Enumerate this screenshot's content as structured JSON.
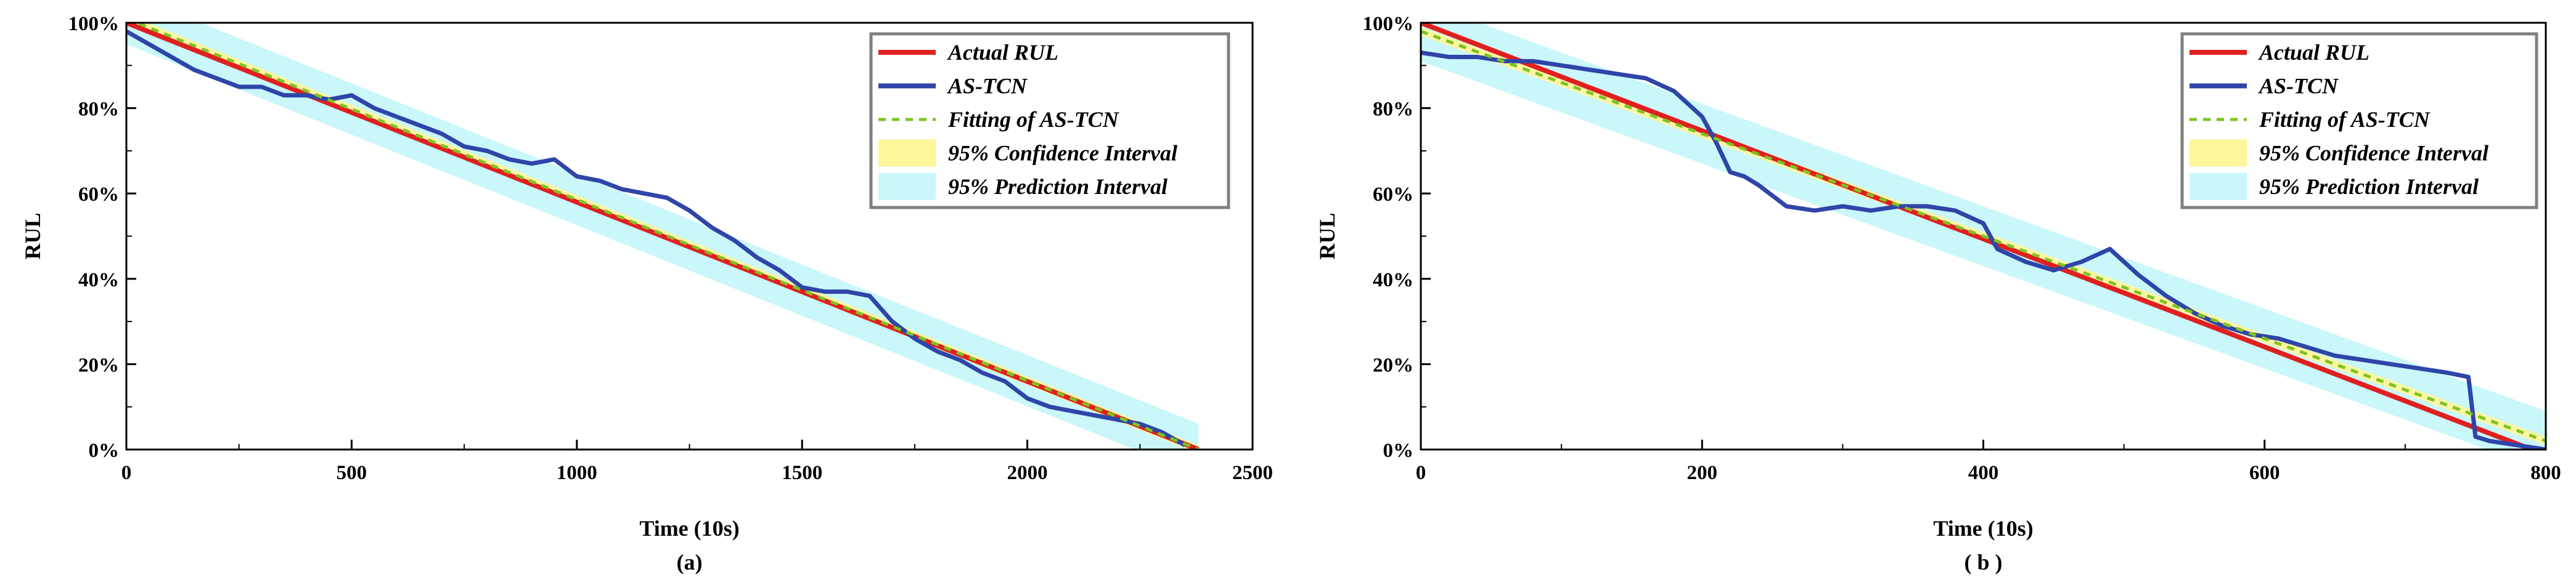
{
  "colors": {
    "actual": "#e02020",
    "astcn": "#2f45a8",
    "fitting": "#7ec322",
    "confidence": "#fff59a",
    "prediction": "#c9f7fa",
    "legend_border": "#808080"
  },
  "legend": [
    {
      "key": "actual",
      "label": "Actual RUL"
    },
    {
      "key": "astcn",
      "label": "AS-TCN"
    },
    {
      "key": "fitting",
      "label": "Fitting of AS-TCN"
    },
    {
      "key": "confidence",
      "label": "95% Confidence Interval"
    },
    {
      "key": "prediction",
      "label": "95% Prediction Interval"
    }
  ],
  "chart_data": [
    {
      "type": "line",
      "caption": "(a)",
      "xlabel": "Time (10s)",
      "ylabel": "RUL",
      "xlim": [
        0,
        2500
      ],
      "ylim": [
        0,
        100
      ],
      "xticks": [
        0,
        500,
        1000,
        1500,
        2000,
        2500
      ],
      "yticks": [
        0,
        20,
        40,
        60,
        80,
        100
      ],
      "ytick_labels": [
        "0%",
        "20%",
        "40%",
        "60%",
        "80%",
        "100%"
      ],
      "xtick_labels": [
        "0",
        "500",
        "1000",
        "1500",
        "2000",
        "2500"
      ],
      "legend_position": "top-right",
      "series": [
        {
          "name": "Actual RUL",
          "x": [
            0,
            2380
          ],
          "y": [
            100,
            0
          ]
        },
        {
          "name": "Fitting of AS-TCN",
          "x": [
            0,
            2380
          ],
          "y": [
            101,
            0
          ]
        },
        {
          "name": "AS-TCN",
          "x": [
            0,
            50,
            100,
            150,
            200,
            250,
            300,
            350,
            400,
            450,
            500,
            550,
            600,
            650,
            700,
            750,
            800,
            850,
            900,
            950,
            1000,
            1050,
            1100,
            1150,
            1200,
            1250,
            1300,
            1350,
            1400,
            1450,
            1500,
            1550,
            1600,
            1650,
            1700,
            1750,
            1800,
            1850,
            1900,
            1950,
            2000,
            2050,
            2100,
            2150,
            2200,
            2250,
            2300,
            2350
          ],
          "y": [
            98,
            95,
            92,
            89,
            87,
            85,
            85,
            83,
            83,
            82,
            83,
            80,
            78,
            76,
            74,
            71,
            70,
            68,
            67,
            68,
            64,
            63,
            61,
            60,
            59,
            56,
            52,
            49,
            45,
            42,
            38,
            37,
            37,
            36,
            30,
            26,
            23,
            21,
            18,
            16,
            12,
            10,
            9,
            8,
            7,
            6,
            4,
            1
          ]
        }
      ],
      "intervals": {
        "confidence_halfwidth": 1,
        "prediction_halfwidth": 6
      }
    },
    {
      "type": "line",
      "caption": "( b )",
      "xlabel": "Time (10s)",
      "ylabel": "RUL",
      "xlim": [
        0,
        800
      ],
      "ylim": [
        0,
        100
      ],
      "xticks": [
        0,
        200,
        400,
        600,
        800
      ],
      "yticks": [
        0,
        20,
        40,
        60,
        80,
        100
      ],
      "ytick_labels": [
        "0%",
        "20%",
        "40%",
        "60%",
        "80%",
        "100%"
      ],
      "xtick_labels": [
        "0",
        "200",
        "400",
        "600",
        "800"
      ],
      "legend_position": "top-right",
      "series": [
        {
          "name": "Actual RUL",
          "x": [
            0,
            790
          ],
          "y": [
            100,
            0
          ]
        },
        {
          "name": "Fitting of AS-TCN",
          "x": [
            0,
            800
          ],
          "y": [
            98,
            2
          ]
        },
        {
          "name": "AS-TCN",
          "x": [
            0,
            20,
            40,
            60,
            80,
            100,
            120,
            140,
            160,
            180,
            200,
            210,
            220,
            230,
            240,
            260,
            280,
            300,
            320,
            340,
            360,
            380,
            400,
            410,
            430,
            450,
            470,
            490,
            510,
            530,
            550,
            570,
            590,
            610,
            630,
            650,
            670,
            690,
            710,
            730,
            745,
            750,
            760,
            780,
            800
          ],
          "y": [
            93,
            92,
            92,
            91,
            91,
            90,
            89,
            88,
            87,
            84,
            78,
            72,
            65,
            64,
            62,
            57,
            56,
            57,
            56,
            57,
            57,
            56,
            53,
            47,
            44,
            42,
            44,
            47,
            41,
            36,
            32,
            29,
            27,
            26,
            24,
            22,
            21,
            20,
            19,
            18,
            17,
            3,
            2,
            1,
            0
          ]
        }
      ],
      "intervals": {
        "confidence_halfwidth": 1,
        "prediction_halfwidth": 7
      }
    }
  ]
}
